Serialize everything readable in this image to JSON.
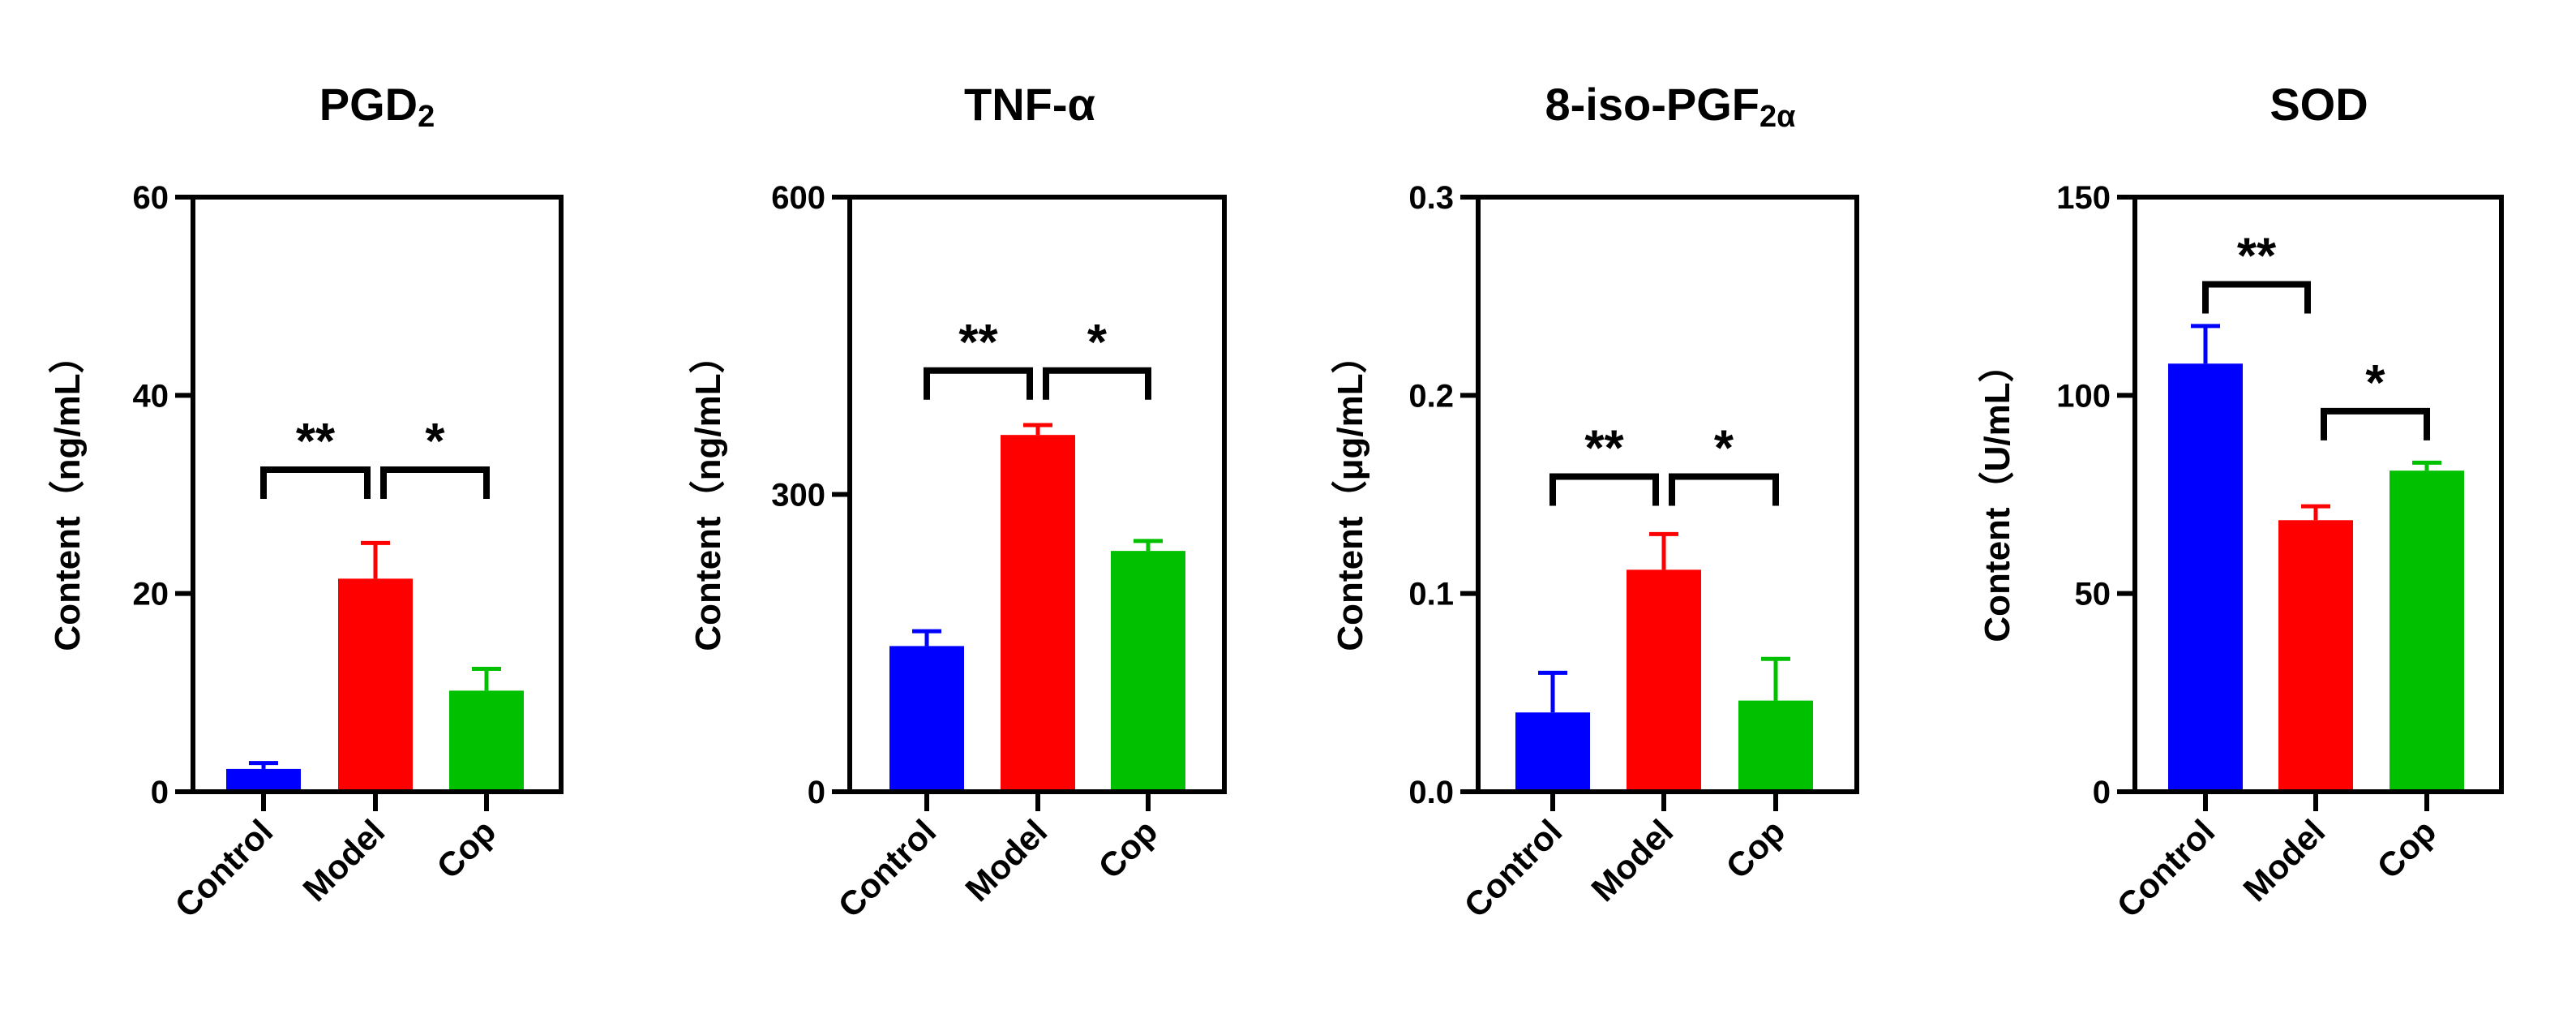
{
  "chart_data": [
    {
      "type": "bar",
      "title_main": "PGD",
      "title_sub": "2",
      "ylabel": "Content（ng/mL）",
      "categories": [
        "Control",
        "Model",
        "Cop"
      ],
      "values": [
        2.3,
        21.5,
        10.2
      ],
      "errors": [
        0.6,
        3.6,
        2.2
      ],
      "colors": [
        "#0000ff",
        "#ff0000",
        "#00c000"
      ],
      "ylim": [
        0,
        60
      ],
      "yticks": [
        0,
        20,
        40,
        60
      ],
      "ytick_labels": [
        "0",
        "20",
        "40",
        "60"
      ],
      "significance": [
        {
          "from": 0,
          "to": 1,
          "label": "**",
          "y": 32.5
        },
        {
          "from": 1,
          "to": 2,
          "label": "*",
          "y": 32.5
        }
      ]
    },
    {
      "type": "bar",
      "title_main": "TNF-α",
      "title_sub": "",
      "ylabel": "Content（ng/mL）",
      "categories": [
        "Control",
        "Model",
        "Cop"
      ],
      "values": [
        147,
        360,
        243
      ],
      "errors": [
        15,
        10,
        10
      ],
      "colors": [
        "#0000ff",
        "#ff0000",
        "#00c000"
      ],
      "ylim": [
        0,
        600
      ],
      "yticks": [
        0,
        300,
        600
      ],
      "ytick_labels": [
        "0",
        "300",
        "600"
      ],
      "significance": [
        {
          "from": 0,
          "to": 1,
          "label": "**",
          "y": 425
        },
        {
          "from": 1,
          "to": 2,
          "label": "*",
          "y": 425
        }
      ]
    },
    {
      "type": "bar",
      "title_main": "8-iso-PGF",
      "title_sub": "2α",
      "ylabel": "Content（μg/mL）",
      "categories": [
        "Control",
        "Model",
        "Cop"
      ],
      "values": [
        0.04,
        0.112,
        0.046
      ],
      "errors": [
        0.02,
        0.018,
        0.021
      ],
      "colors": [
        "#0000ff",
        "#ff0000",
        "#00c000"
      ],
      "ylim": [
        0,
        0.3
      ],
      "yticks": [
        0,
        0.1,
        0.2,
        0.3
      ],
      "ytick_labels": [
        "0.0",
        "0.1",
        "0.2",
        "0.3"
      ],
      "significance": [
        {
          "from": 0,
          "to": 1,
          "label": "**",
          "y": 0.159
        },
        {
          "from": 1,
          "to": 2,
          "label": "*",
          "y": 0.159
        }
      ]
    },
    {
      "type": "bar",
      "title_main": "SOD",
      "title_sub": "",
      "ylabel": "Content（U/mL）",
      "categories": [
        "Control",
        "Model",
        "Cop"
      ],
      "values": [
        108,
        68.5,
        81
      ],
      "errors": [
        9.5,
        3.5,
        2.0
      ],
      "colors": [
        "#0000ff",
        "#ff0000",
        "#00c000"
      ],
      "ylim": [
        0,
        150
      ],
      "yticks": [
        0,
        50,
        100,
        150
      ],
      "ytick_labels": [
        "0",
        "50",
        "100",
        "150"
      ],
      "significance": [
        {
          "from": 0,
          "to": 1,
          "label": "**",
          "y": 128
        },
        {
          "from": 1,
          "to": 2,
          "label": "*",
          "y": 96
        }
      ]
    }
  ]
}
